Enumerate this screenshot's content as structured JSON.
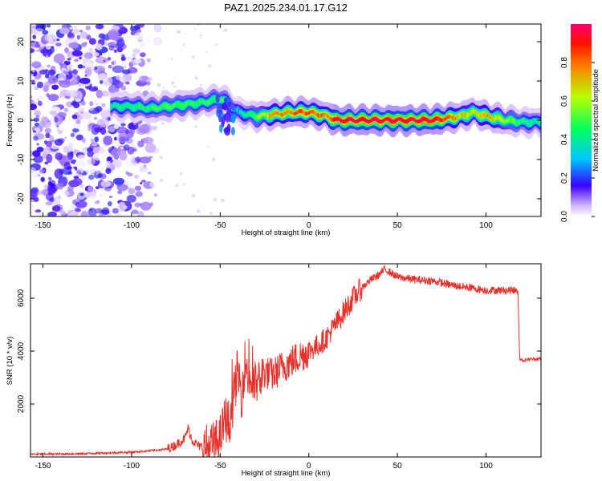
{
  "chart_data": [
    {
      "type": "heatmap",
      "title": "PAZ1.2025.234.01.17.G12",
      "xlabel": "Height of straight line (km)",
      "ylabel": "Frequency (Hz)",
      "xlim": [
        -157,
        131
      ],
      "ylim": [
        -24.5,
        24.5
      ],
      "xticks": [
        -150,
        -100,
        -50,
        0,
        50,
        100
      ],
      "yticks": [
        -20,
        -10,
        0,
        10,
        20
      ],
      "colorbar": {
        "label": "Normalized spectral amplitude",
        "range": [
          0,
          1
        ],
        "ticks": [
          0.0,
          0.2,
          0.4,
          0.6,
          0.8
        ],
        "tick_labels": [
          "0.0",
          "0.2",
          "0.4",
          "0.6",
          "0.8"
        ]
      },
      "ridge": {
        "height_km": [
          -112,
          -100,
          -90,
          -80,
          -70,
          -60,
          -50,
          -45,
          -40,
          -30,
          -20,
          -10,
          0,
          10,
          15,
          30,
          50,
          70,
          85,
          92,
          100,
          110,
          120,
          131
        ],
        "frequency_hz": [
          3.5,
          3.5,
          3.0,
          3.5,
          4.0,
          4.5,
          5.5,
          4.0,
          2.0,
          1.0,
          1.5,
          2.0,
          2.0,
          1.0,
          0.0,
          0.0,
          0.0,
          0.0,
          1.0,
          2.0,
          1.0,
          0.0,
          -0.5,
          -0.5
        ],
        "amplitude": [
          0.4,
          0.45,
          0.45,
          0.5,
          0.5,
          0.45,
          0.5,
          0.4,
          0.3,
          0.55,
          0.75,
          0.8,
          0.85,
          0.75,
          0.95,
          0.95,
          0.95,
          0.95,
          0.7,
          0.65,
          0.75,
          0.6,
          0.45,
          0.4
        ]
      },
      "noise_region_km": [
        -157,
        -85
      ],
      "noise_amplitude_max": 0.2
    },
    {
      "type": "line",
      "title": "",
      "xlabel": "Height of straight line (km)",
      "ylabel": "SNR (10 * v/v)",
      "xlim": [
        -157,
        131
      ],
      "ylim": [
        0,
        7300
      ],
      "xticks": [
        -150,
        -100,
        -50,
        0,
        50,
        100
      ],
      "yticks": [
        2000,
        4000,
        6000
      ],
      "color": "#e8302a",
      "series": [
        {
          "name": "SNR",
          "x": [
            -157,
            -130,
            -100,
            -90,
            -80,
            -75,
            -70,
            -68,
            -66,
            -62,
            -58,
            -55,
            -50,
            -47,
            -45,
            -43,
            -40,
            -38,
            -36,
            -34,
            -31,
            -28,
            -25,
            -20,
            -15,
            -10,
            -5,
            0,
            5,
            10,
            15,
            20,
            25,
            30,
            35,
            40,
            43,
            50,
            60,
            70,
            80,
            90,
            100,
            110,
            118,
            119,
            121,
            125,
            131
          ],
          "y": [
            100,
            120,
            180,
            230,
            300,
            450,
            700,
            1100,
            650,
            400,
            350,
            400,
            700,
            1500,
            1250,
            2000,
            3300,
            2300,
            3600,
            3000,
            2700,
            2900,
            3200,
            3100,
            3400,
            3600,
            3800,
            4000,
            4200,
            4500,
            5000,
            5500,
            6000,
            6400,
            6700,
            6900,
            7100,
            6800,
            6700,
            6650,
            6500,
            6400,
            6300,
            6300,
            6300,
            3700,
            3650,
            3700,
            3700
          ]
        }
      ]
    }
  ]
}
